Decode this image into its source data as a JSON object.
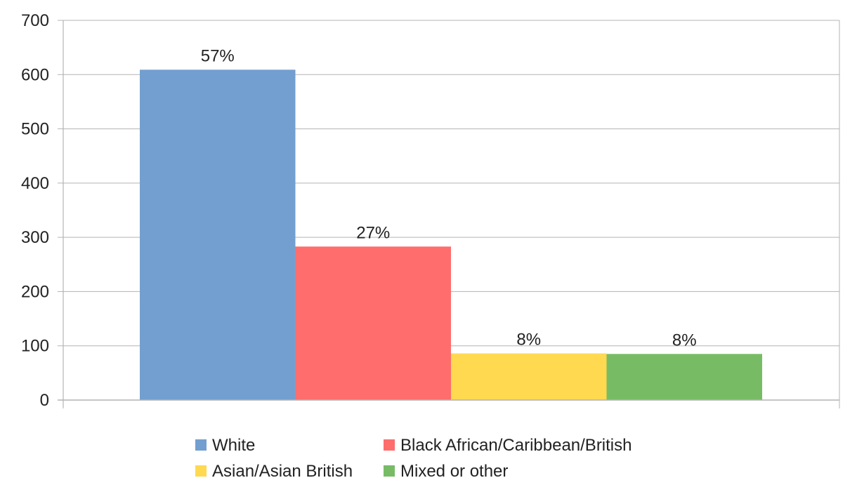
{
  "chart_data": {
    "type": "bar",
    "title": "",
    "xlabel": "",
    "ylabel": "",
    "ylim": [
      0,
      700
    ],
    "yticks": [
      0,
      100,
      200,
      300,
      400,
      500,
      600,
      700
    ],
    "grid": true,
    "legend_position": "bottom",
    "categories": [
      ""
    ],
    "series": [
      {
        "name": "White",
        "values": [
          609
        ],
        "label": "57%",
        "color": "#729FCF"
      },
      {
        "name": "Black African/Caribbean/British",
        "values": [
          283
        ],
        "label": "27%",
        "color": "#FF6D6D"
      },
      {
        "name": "Asian/Asian British",
        "values": [
          86
        ],
        "label": "8%",
        "color": "#FFD950"
      },
      {
        "name": "Mixed or other",
        "values": [
          85
        ],
        "label": "8%",
        "color": "#77BC65"
      }
    ]
  }
}
